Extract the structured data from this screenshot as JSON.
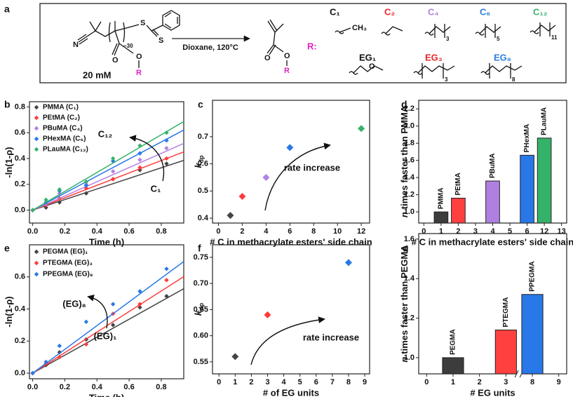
{
  "scheme": {
    "panel_label": "a",
    "reactant_labels": [
      "N",
      "O",
      "O",
      "S",
      "S",
      "~30"
    ],
    "r_group": "R",
    "concentration": "20 mM",
    "conditions": "Dioxane, 120°C",
    "product_labels": [
      "O",
      "O"
    ],
    "r_prefix": "R:",
    "alkyl": [
      {
        "name": "C₁",
        "group": "CH₃"
      },
      {
        "name": "C₂"
      },
      {
        "name": "C₄",
        "n": "3"
      },
      {
        "name": "C₆",
        "n": "5"
      },
      {
        "name": "C₁₂",
        "n": "11"
      }
    ],
    "eg": [
      {
        "name": "EG₁"
      },
      {
        "name": "EG₃",
        "n": "3"
      },
      {
        "name": "EG₈",
        "n": "8"
      }
    ]
  },
  "chart_data": [
    {
      "type": "scatter",
      "panel_label": "b",
      "xlabel": "Time (h)",
      "ylabel": "-ln(1-ρ)",
      "x": [
        0,
        0.083,
        0.167,
        0.333,
        0.5,
        0.667,
        0.833
      ],
      "series": [
        {
          "name": "PMMA (C₁)",
          "color": "#444444",
          "values": [
            0,
            0.02,
            0.06,
            0.13,
            0.24,
            0.31,
            0.36
          ]
        },
        {
          "name": "PEtMA (C₂)",
          "color": "#ff3b3b",
          "values": [
            0,
            0.04,
            0.09,
            0.17,
            0.24,
            0.33,
            0.4
          ]
        },
        {
          "name": "PBuMA (C₄)",
          "color": "#b380e6",
          "values": [
            0,
            0.05,
            0.13,
            0.2,
            0.3,
            0.39,
            0.48
          ]
        },
        {
          "name": "PHexMA (C₆)",
          "color": "#2878e8",
          "values": [
            0,
            0.06,
            0.15,
            0.19,
            0.38,
            0.44,
            0.54
          ]
        },
        {
          "name": "PLauMA (C₁₂)",
          "color": "#35b26a",
          "values": [
            0,
            0.08,
            0.16,
            0.22,
            0.4,
            0.5,
            0.6
          ]
        }
      ],
      "xlim": [
        -0.02,
        0.94
      ],
      "xticks": [
        {
          "value": 0,
          "label": "0.0"
        },
        0.2,
        0.4,
        0.6,
        0.8
      ],
      "ylim": [
        -0.1,
        0.84
      ],
      "yticks": [
        {
          "value": 0,
          "label": "0.0"
        },
        0.2,
        0.4,
        0.6,
        0.8
      ],
      "legend": "upper left",
      "fit_lines": true,
      "annotations": [
        "C₁₂",
        "C₁"
      ]
    },
    {
      "type": "scatter",
      "panel_label": "c",
      "xlabel": "# C in methacrylate esters' side chain",
      "ylabel": "k",
      "ylabel_sub": "dp",
      "x": [
        1,
        2,
        4,
        6,
        12
      ],
      "values": [
        0.41,
        0.48,
        0.55,
        0.66,
        0.73
      ],
      "colors": [
        "#444444",
        "#ff3b3b",
        "#b380e6",
        "#2878e8",
        "#35b26a"
      ],
      "xlim": [
        -0.5,
        12.7
      ],
      "xticks": [
        0,
        2,
        4,
        6,
        8,
        10,
        12
      ],
      "ylim": [
        0.382,
        0.834
      ],
      "yticks": [
        0.4,
        0.5,
        0.6,
        0.7
      ],
      "annotations": [
        "rate increase"
      ]
    },
    {
      "type": "bar",
      "panel_label": "d",
      "xlabel": "# C in methacrylate esters' side chain",
      "ylabel_italic": "n",
      "ylabel": "times faster than PMMA",
      "x": [
        1,
        2,
        4,
        6,
        12
      ],
      "categories": [
        "PMMA",
        "PEtMA",
        "PBuMA",
        "PHexMA",
        "PLauMA"
      ],
      "values": [
        1.0,
        1.16,
        1.36,
        1.66,
        1.86
      ],
      "colors": [
        "#3c3c3c",
        "#ff4040",
        "#b080e0",
        "#2878e8",
        "#35b26a"
      ],
      "xticks": [
        0,
        1,
        2,
        3,
        4,
        5,
        6,
        12,
        13
      ],
      "ylim": [
        0.87,
        2.3
      ],
      "yticks": [
        {
          "value": 1,
          "label": "1.0"
        },
        1.2,
        1.4,
        1.6,
        1.8,
        {
          "value": 2,
          "label": "2.0"
        },
        2.2
      ]
    },
    {
      "type": "scatter",
      "panel_label": "e",
      "xlabel": "Time (h)",
      "ylabel": "-ln(1-ρ)",
      "x": [
        0,
        0.083,
        0.167,
        0.333,
        0.5,
        0.667,
        0.833
      ],
      "series": [
        {
          "name": "PEGMA (EG)₁",
          "color": "#444444",
          "values": [
            0,
            0.05,
            0.13,
            0.21,
            0.3,
            0.41,
            0.48
          ]
        },
        {
          "name": "PTEGMA (EG)₃",
          "color": "#ff3b3b",
          "values": [
            0,
            0.06,
            0.1,
            0.18,
            0.37,
            0.43,
            0.58
          ]
        },
        {
          "name": "PPEGMA (EG)₈",
          "color": "#2878e8",
          "values": [
            0,
            0.07,
            0.17,
            0.32,
            0.43,
            0.51,
            0.65
          ]
        }
      ],
      "xlim": [
        -0.02,
        0.94
      ],
      "xticks": [
        {
          "value": 0,
          "label": "0.0"
        },
        0.2,
        0.4,
        0.6,
        0.8
      ],
      "ylim": [
        -0.035,
        0.8
      ],
      "yticks": [
        {
          "value": 0,
          "label": "0.0"
        },
        0.2,
        0.4,
        0.6
      ],
      "legend": "upper left",
      "fit_lines": true,
      "annotations": [
        "(EG)₈",
        "(EG)₁"
      ]
    },
    {
      "type": "scatter",
      "panel_label": "f",
      "xlabel": "# of EG units",
      "ylabel": "k",
      "ylabel_sub": "dp",
      "x": [
        1,
        3,
        8
      ],
      "values": [
        0.56,
        0.64,
        0.74
      ],
      "colors": [
        "#444444",
        "#ff3b3b",
        "#2878e8"
      ],
      "xlim": [
        -0.4,
        9.3
      ],
      "xticks": [
        0,
        1,
        2,
        3,
        4,
        5,
        6,
        7,
        8,
        9
      ],
      "ylim": [
        0.527,
        0.774
      ],
      "yticks": [
        0.55,
        {
          "value": 0.6,
          "label": "0.60"
        },
        0.65,
        {
          "value": 0.7,
          "label": "0.70"
        },
        0.75
      ],
      "annotations": [
        "rate increase"
      ]
    },
    {
      "type": "bar",
      "panel_label": "g",
      "xlabel": "# EG units",
      "ylabel_italic": "n",
      "ylabel": "times faster than PEGMA",
      "x": [
        1,
        3,
        8
      ],
      "categories": [
        "PEGMA",
        "PTEGMA",
        "PPEGMA"
      ],
      "values": [
        1.0,
        1.14,
        1.32
      ],
      "colors": [
        "#3c3c3c",
        "#ff4040",
        "#2878e8"
      ],
      "xticks": [
        0,
        1,
        2,
        3,
        8,
        9
      ],
      "axis_break": true,
      "ylim": [
        0.918,
        1.628
      ],
      "yticks": [
        {
          "value": 1,
          "label": "1.0"
        },
        1.2,
        1.4,
        1.6
      ]
    }
  ]
}
